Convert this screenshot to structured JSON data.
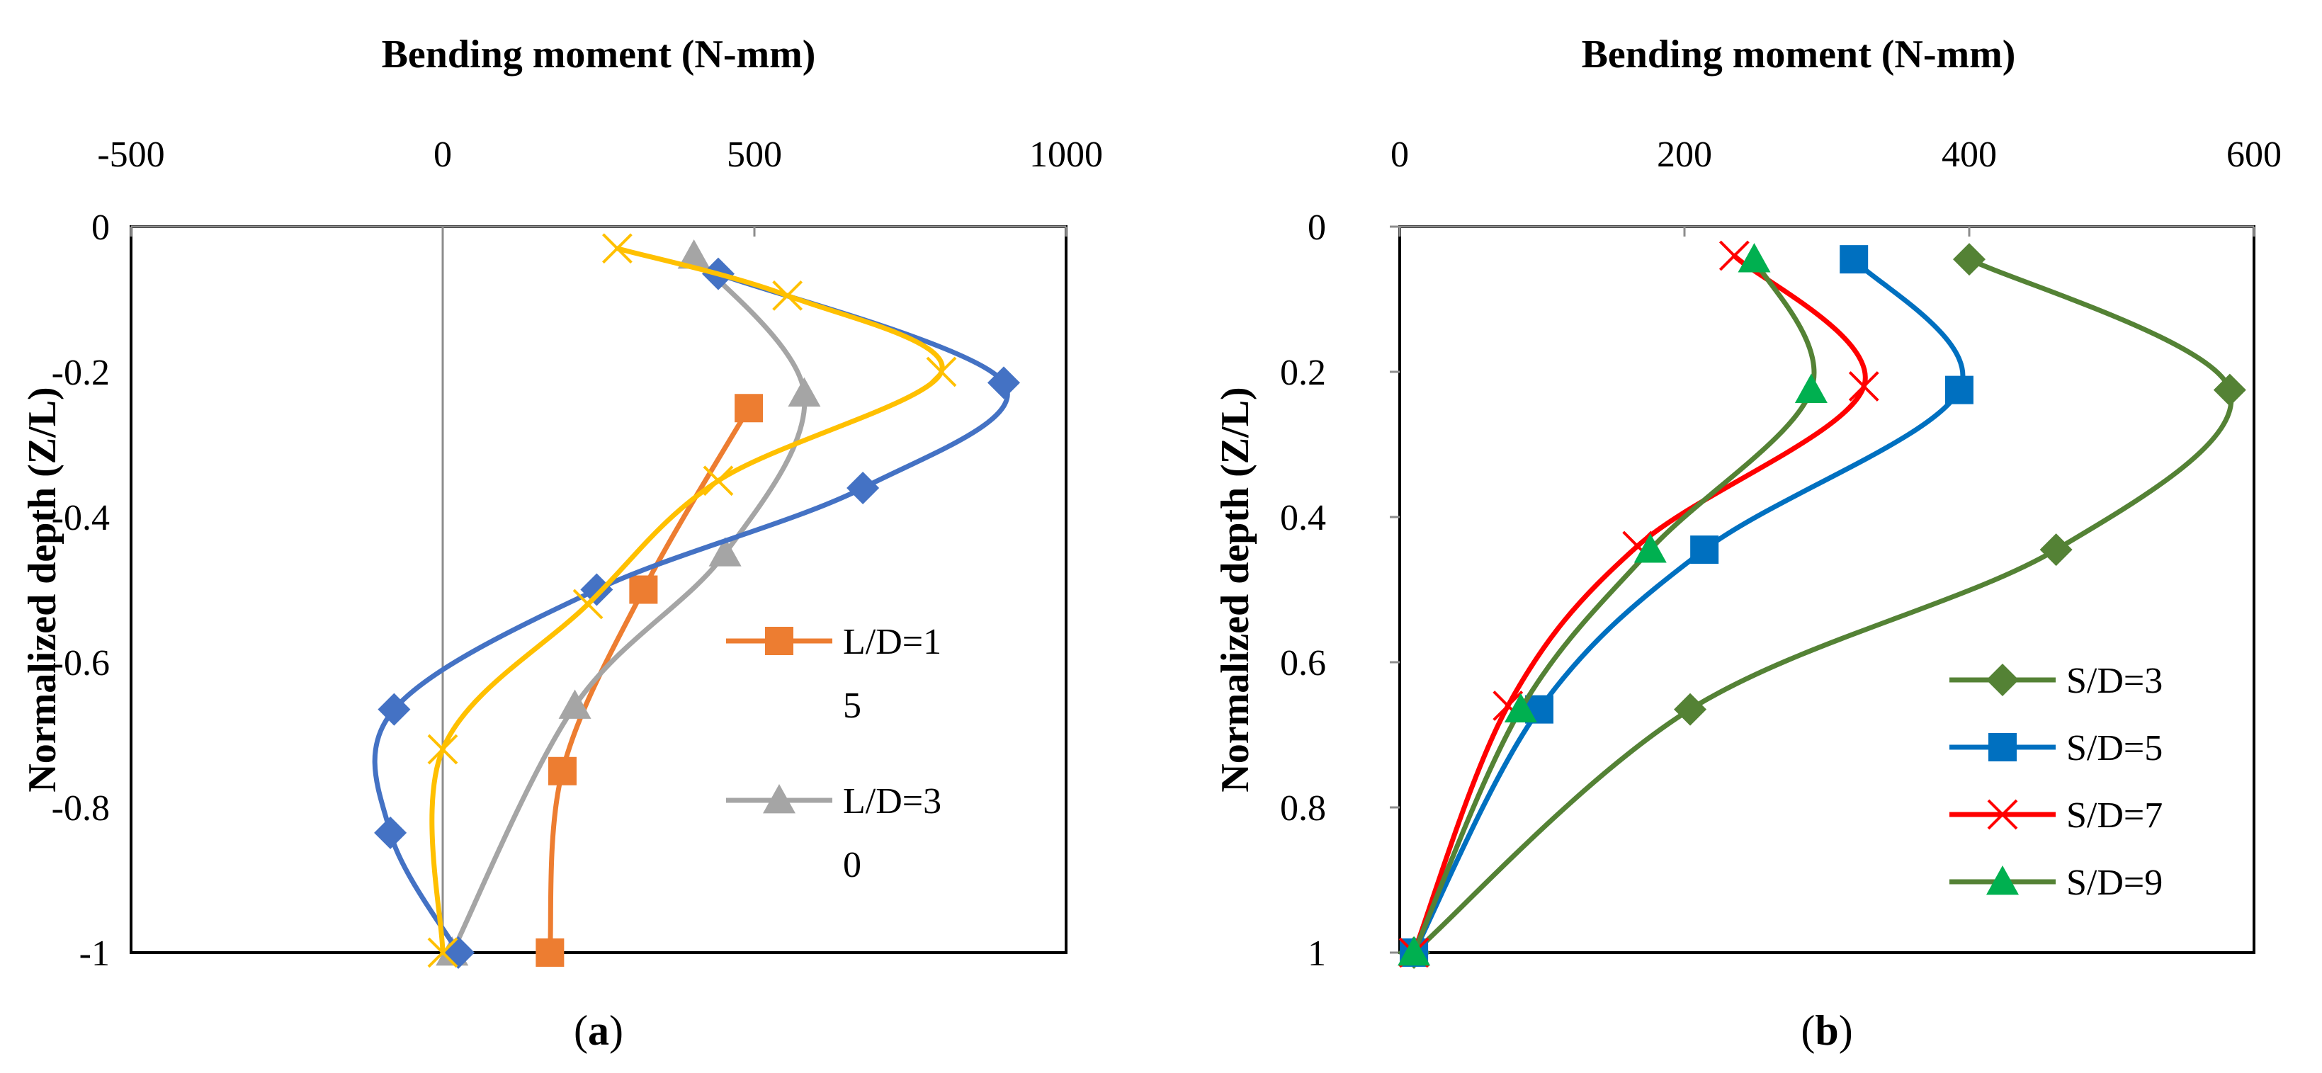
{
  "chart_data": [
    {
      "type": "line",
      "panel_label": "a",
      "xlabel": "Bending moment (N-mm)",
      "ylabel": "Normalized depth (Z/L)",
      "xlim": [
        -500,
        1000
      ],
      "ylim": [
        -1,
        0
      ],
      "x_ticks": [
        -500,
        0,
        500,
        1000
      ],
      "y_ticks": [
        0,
        -0.2,
        -0.4,
        -0.6,
        -0.8,
        -1
      ],
      "x_tick_labels": [
        "-500",
        "0",
        "500",
        "1000"
      ],
      "y_tick_labels": [
        "0",
        "-0.2",
        "-0.4",
        "-0.6",
        "-0.8",
        "-1"
      ],
      "zero_line": true,
      "legend_position": "right",
      "series": [
        {
          "name": "L/D=15",
          "legend_lines": [
            "L/D=1",
            "5"
          ],
          "color": "#ED7D31",
          "marker": "square",
          "in_legend": true,
          "points": [
            [
              491,
              -0.25
            ],
            [
              322,
              -0.5
            ],
            [
              192,
              -0.75
            ],
            [
              172,
              -1.0
            ]
          ]
        },
        {
          "name": "L/D=30",
          "legend_lines": [
            "L/D=3",
            "0"
          ],
          "color": "#A5A5A5",
          "marker": "triangle",
          "in_legend": true,
          "points": [
            [
              403,
              -0.04
            ],
            [
              580,
              -0.23
            ],
            [
              453,
              -0.45
            ],
            [
              212,
              -0.66
            ],
            [
              15,
              -1.0
            ]
          ]
        },
        {
          "name": "Series (diamond)",
          "legend_lines": [],
          "color": "#4472C4",
          "marker": "diamond",
          "in_legend": false,
          "points": [
            [
              442,
              -0.065
            ],
            [
              900,
              -0.215
            ],
            [
              674,
              -0.36
            ],
            [
              247,
              -0.5
            ],
            [
              -78,
              -0.665
            ],
            [
              -84,
              -0.835
            ],
            [
              25,
              -1.0
            ]
          ]
        },
        {
          "name": "Series (cross)",
          "legend_lines": [],
          "color": "#FFC000",
          "marker": "x",
          "in_legend": false,
          "points": [
            [
              280,
              -0.03
            ],
            [
              553,
              -0.095
            ],
            [
              800,
              -0.2
            ],
            [
              442,
              -0.35
            ],
            [
              233,
              -0.52
            ],
            [
              0,
              -0.72
            ],
            [
              0,
              -1.0
            ]
          ]
        }
      ]
    },
    {
      "type": "line",
      "panel_label": "b",
      "xlabel": "Bending moment (N-mm)",
      "ylabel": "Normalized depth (Z/L)",
      "xlim": [
        0,
        600
      ],
      "ylim": [
        0,
        1
      ],
      "y_inverted": true,
      "x_ticks": [
        0,
        200,
        400,
        600
      ],
      "y_ticks": [
        0,
        0.2,
        0.4,
        0.6,
        0.8,
        1
      ],
      "x_tick_labels": [
        "0",
        "200",
        "400",
        "600"
      ],
      "y_tick_labels": [
        "0",
        "0.2",
        "0.4",
        "0.6",
        "0.8",
        "1"
      ],
      "legend_position": "bottom-right",
      "series": [
        {
          "name": "S/D=3",
          "legend_lines": [
            "S/D=3"
          ],
          "color": "#548235",
          "marker": "diamond",
          "in_legend": true,
          "points": [
            [
              400,
              0.045
            ],
            [
              583,
              0.225
            ],
            [
              461,
              0.445
            ],
            [
              204,
              0.665
            ],
            [
              10,
              1.0
            ]
          ]
        },
        {
          "name": "S/D=5",
          "legend_lines": [
            "S/D=5"
          ],
          "color": "#0070C0",
          "marker": "square",
          "in_legend": true,
          "points": [
            [
              319,
              0.045
            ],
            [
              393,
              0.225
            ],
            [
              214,
              0.445
            ],
            [
              98,
              0.665
            ],
            [
              10,
              1.0
            ]
          ]
        },
        {
          "name": "S/D=7",
          "legend_lines": [
            "S/D=7"
          ],
          "color": "#FF0000",
          "marker": "x",
          "in_legend": true,
          "points": [
            [
              235,
              0.04
            ],
            [
              326,
              0.22
            ],
            [
              167,
              0.44
            ],
            [
              76,
              0.66
            ],
            [
              10,
              1.0
            ]
          ]
        },
        {
          "name": "S/D=9",
          "legend_lines": [
            "S/D=9"
          ],
          "color": "#00B050",
          "marker": "triangle",
          "in_legend": true,
          "line_color": "#548235",
          "points": [
            [
              249,
              0.045
            ],
            [
              289,
              0.225
            ],
            [
              176,
              0.445
            ],
            [
              85,
              0.665
            ],
            [
              10,
              1.0
            ]
          ]
        }
      ]
    }
  ]
}
